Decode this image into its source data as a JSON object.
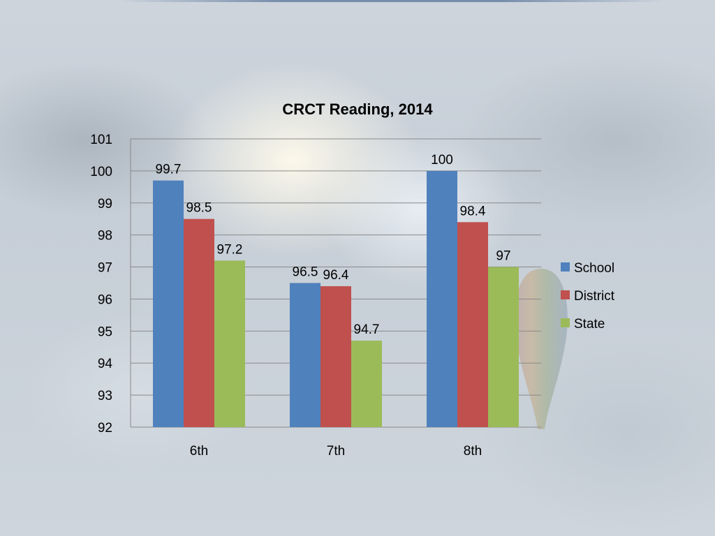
{
  "chart_data": {
    "type": "bar",
    "title": "CRCT Reading, 2014",
    "categories": [
      "6th",
      "7th",
      "8th"
    ],
    "series": [
      {
        "name": "School",
        "values": [
          99.7,
          96.5,
          100
        ],
        "labels": [
          "99.7",
          "96.5",
          "100"
        ],
        "color": "#4F81BD"
      },
      {
        "name": "District",
        "values": [
          98.5,
          96.4,
          98.4
        ],
        "labels": [
          "98.5",
          "96.4",
          "98.4"
        ],
        "color": "#C0504D"
      },
      {
        "name": "State",
        "values": [
          97.2,
          94.7,
          97
        ],
        "labels": [
          "97.2",
          "94.7",
          "97"
        ],
        "color": "#9BBB59"
      }
    ],
    "yticks": [
      "92",
      "93",
      "94",
      "95",
      "96",
      "97",
      "98",
      "99",
      "100",
      "101"
    ],
    "ylim": [
      92,
      101
    ],
    "grid": true,
    "legend_position": "right",
    "xlabel": "",
    "ylabel": ""
  }
}
